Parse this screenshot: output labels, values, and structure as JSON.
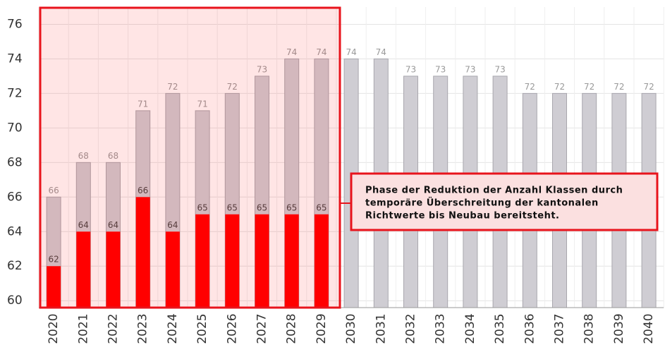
{
  "chart_data": {
    "type": "bar",
    "categories": [
      "2020",
      "2021",
      "2022",
      "2023",
      "2024",
      "2025",
      "2026",
      "2027",
      "2028",
      "2029",
      "2030",
      "2031",
      "2032",
      "2033",
      "2034",
      "2035",
      "2036",
      "2037",
      "2038",
      "2039",
      "2040"
    ],
    "series": [
      {
        "color": "#cfcdd3",
        "values": [
          66,
          68,
          68,
          71,
          72,
          71,
          72,
          73,
          74,
          74,
          74,
          74,
          73,
          73,
          73,
          73,
          72,
          72,
          72,
          72,
          72
        ]
      },
      {
        "color": "#ff0000",
        "values": [
          62,
          64,
          64,
          66,
          64,
          65,
          65,
          65,
          65,
          65,
          null,
          null,
          null,
          null,
          null,
          null,
          null,
          null,
          null,
          null,
          null
        ]
      }
    ],
    "ylim": [
      59.6,
      77
    ],
    "yticks": [
      60,
      62,
      64,
      66,
      68,
      70,
      72,
      74,
      76
    ],
    "grid": true,
    "annotation": [
      "Phase der Reduktion der Anzahl Klassen durch",
      "temporäre Überschreitung der kantonalen",
      "Richtwerte bis Neubau bereitsteht."
    ]
  }
}
